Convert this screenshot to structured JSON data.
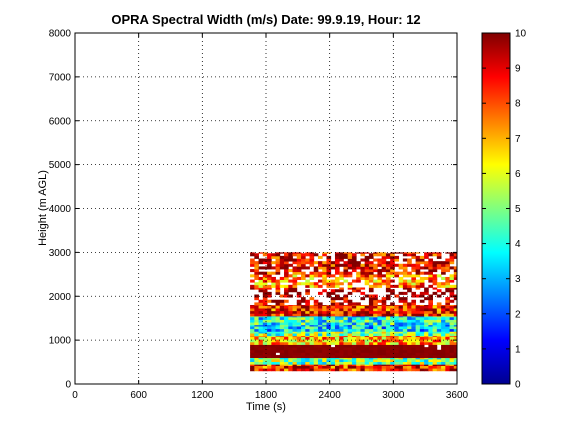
{
  "chart_data": {
    "type": "heatmap",
    "title": "OPRA Spectral Width (m/s)  Date: 99.9.19, Hour: 12",
    "xlabel": "Time (s)",
    "ylabel": "Height (m AGL)",
    "xlim": [
      0,
      3600
    ],
    "ylim": [
      0,
      8000
    ],
    "x_ticks": [
      "0",
      "600",
      "1200",
      "1800",
      "2400",
      "3000",
      "3600"
    ],
    "y_ticks": [
      "0",
      "1000",
      "2000",
      "3000",
      "4000",
      "5000",
      "6000",
      "7000",
      "8000"
    ],
    "grid": true,
    "colormap": "jet",
    "colorbar": {
      "range": [
        0,
        10
      ],
      "ticks": [
        "0",
        "1",
        "2",
        "3",
        "4",
        "5",
        "6",
        "7",
        "8",
        "9",
        "10"
      ]
    },
    "data_time_range_s": [
      1650,
      3600
    ],
    "data_height_range_m": [
      300,
      3000
    ],
    "layers": [
      {
        "height_range_m": [
          300,
          450
        ],
        "value": 8.5
      },
      {
        "height_range_m": [
          450,
          600
        ],
        "value": 5
      },
      {
        "height_range_m": [
          600,
          900
        ],
        "value": 9.8
      },
      {
        "height_range_m": [
          900,
          1100
        ],
        "value": 7
      },
      {
        "height_range_m": [
          1100,
          1200
        ],
        "value": 5
      },
      {
        "height_range_m": [
          1200,
          1350
        ],
        "value": 3.5
      },
      {
        "height_range_m": [
          1350,
          1550
        ],
        "value": 4
      },
      {
        "height_range_m": [
          1550,
          1800
        ],
        "value": 8.5
      },
      {
        "height_range_m": [
          1800,
          2200
        ],
        "value": 9.5
      },
      {
        "height_range_m": [
          2200,
          2500
        ],
        "value": 7.5
      },
      {
        "height_range_m": [
          2500,
          3000
        ],
        "value": 9
      }
    ]
  }
}
